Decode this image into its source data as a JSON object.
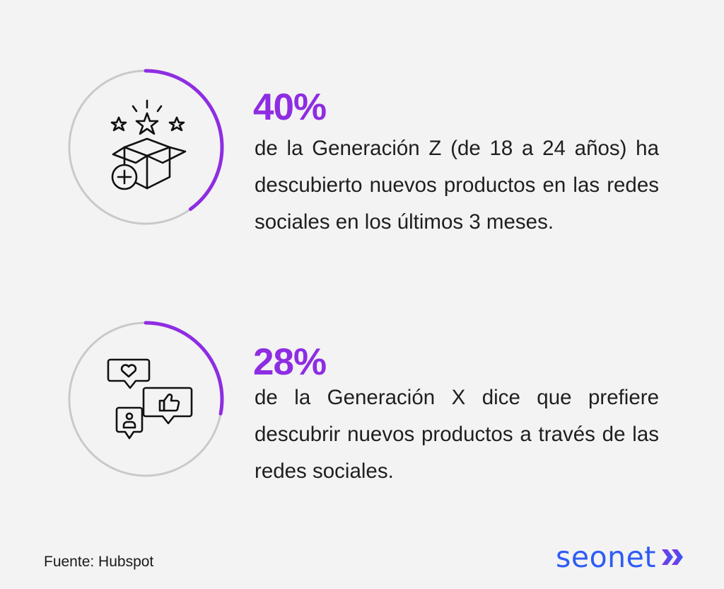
{
  "stats": [
    {
      "percent": "40%",
      "progress": 0.4,
      "description": "de la Generación Z (de 18 a 24 años) ha descubierto nuevos productos en las redes sociales en los últimos 3 meses.",
      "icon": "gift-box-stars-icon"
    },
    {
      "percent": "28%",
      "progress": 0.28,
      "description": "de la Generación X dice que prefiere descubrir nuevos productos a través de las redes sociales.",
      "icon": "social-reactions-icon"
    }
  ],
  "source": "Fuente: Hubspot",
  "brand": {
    "name": "seonet",
    "mark_icon": "double-chevron-right-icon"
  },
  "colors": {
    "accent": "#8e2de2",
    "ring_track": "#c9c9c9",
    "brand_blue": "#2f5cf5",
    "brand_purple": "#8e2de2",
    "background": "#f3f3f3"
  }
}
